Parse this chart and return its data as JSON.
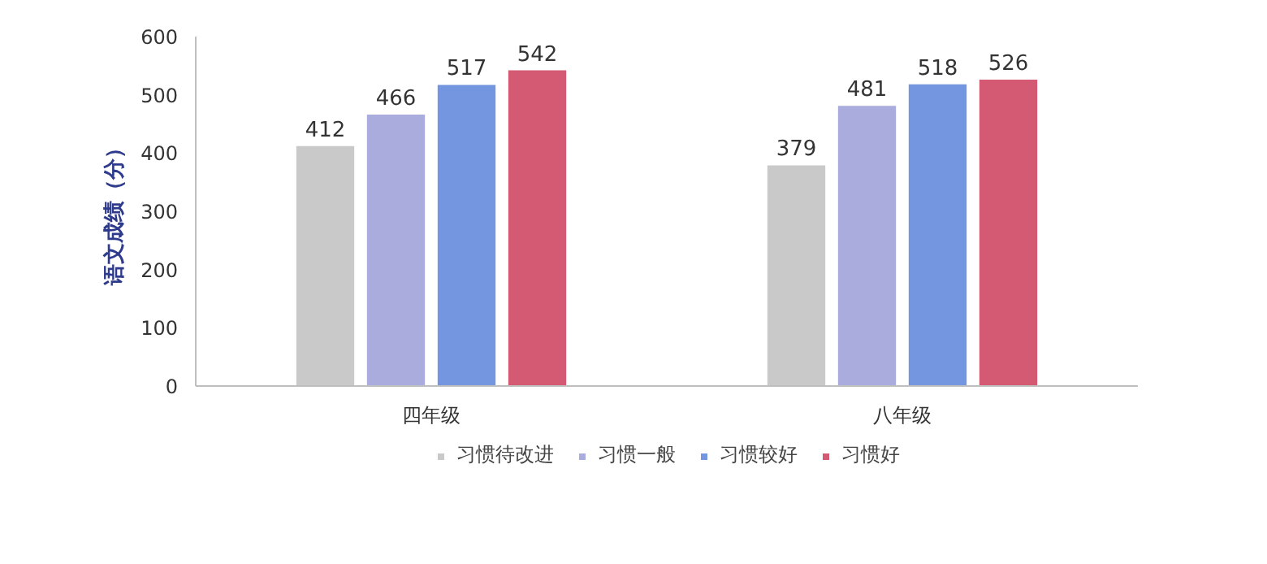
{
  "chart_data": {
    "type": "bar",
    "ylabel": "语文成绩（分）",
    "categories": [
      "四年级",
      "八年级"
    ],
    "series": [
      {
        "name": "习惯待改进",
        "color": "#c9c9c9",
        "values": [
          412,
          379
        ]
      },
      {
        "name": "习惯一般",
        "color": "#a9acdc",
        "values": [
          466,
          481
        ]
      },
      {
        "name": "习惯较好",
        "color": "#7496e0",
        "values": [
          517,
          518
        ]
      },
      {
        "name": "习惯好",
        "color": "#d45a74",
        "values": [
          542,
          526
        ]
      }
    ],
    "ylim": [
      0,
      600
    ],
    "yticks": [
      0,
      100,
      200,
      300,
      400,
      500,
      600
    ],
    "grid": false,
    "legend": "bottom",
    "data_labels": true
  }
}
